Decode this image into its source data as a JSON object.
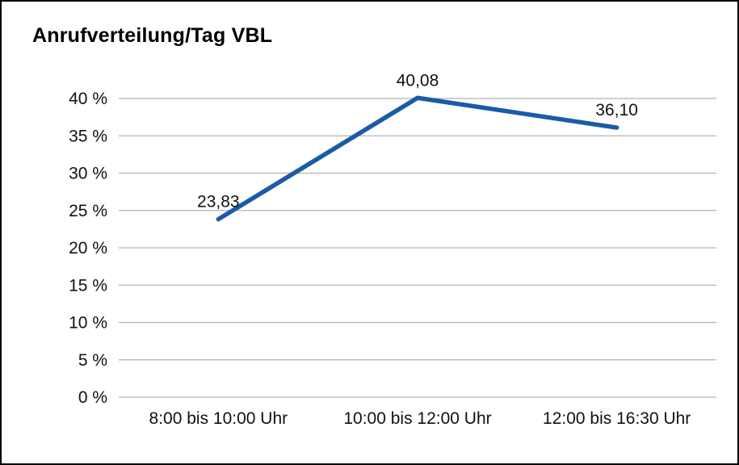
{
  "chart_data": {
    "type": "line",
    "title": "Anrufverteilung/Tag VBL",
    "categories": [
      "8:00 bis 10:00 Uhr",
      "10:00 bis 12:00 Uhr",
      "12:00 bis 16:30 Uhr"
    ],
    "series": [
      {
        "name": "Anrufverteilung/Tag VBL",
        "values": [
          23.83,
          40.08,
          36.1
        ],
        "point_labels": [
          "23,83",
          "40,08",
          "36,10"
        ]
      }
    ],
    "xlabel": "",
    "ylabel": "",
    "ylim": [
      0,
      40
    ],
    "ytick_step": 5,
    "ytick_labels": [
      "0 %",
      "5 %",
      "10 %",
      "15 %",
      "20 %",
      "25 %",
      "30 %",
      "35 %",
      "40 %"
    ],
    "grid": true,
    "legend_position": "none"
  },
  "colors": {
    "line": "#1b5ba6",
    "grid": "#b3b3b3",
    "text": "#111111",
    "border": "#000000",
    "background": "#ffffff"
  }
}
